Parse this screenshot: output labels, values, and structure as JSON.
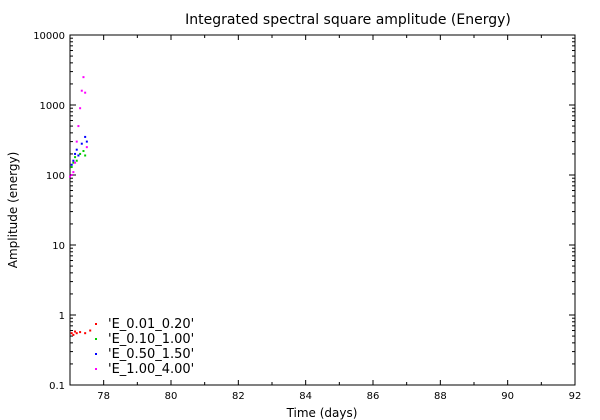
{
  "chart_data": {
    "type": "scatter",
    "title": "Integrated spectral square amplitude (Energy)",
    "xlabel": "Time (days)",
    "ylabel": "Amplitude (energy)",
    "xlim": [
      77,
      92
    ],
    "ylim": [
      0.1,
      10000
    ],
    "yscale": "log",
    "x_ticks": [
      "78",
      "80",
      "82",
      "84",
      "86",
      "88",
      "90",
      "92"
    ],
    "y_ticks": [
      "0.1",
      "1",
      "10",
      "100",
      "1000",
      "10000"
    ],
    "grid": false,
    "legend_position": "bottom-left",
    "series": [
      {
        "name": "'E_0.01_0.20'",
        "color": "#ff0000",
        "points": [
          [
            77.05,
            0.55
          ],
          [
            77.1,
            0.52
          ],
          [
            77.15,
            0.58
          ],
          [
            77.2,
            0.55
          ],
          [
            77.3,
            0.57
          ],
          [
            77.45,
            0.55
          ],
          [
            77.6,
            0.6
          ]
        ]
      },
      {
        "name": "'E_0.10_1.00'",
        "color": "#00cc00",
        "points": [
          [
            77.05,
            130
          ],
          [
            77.1,
            150
          ],
          [
            77.15,
            180
          ],
          [
            77.2,
            160
          ],
          [
            77.3,
            200
          ],
          [
            77.4,
            220
          ],
          [
            77.45,
            190
          ]
        ]
      },
      {
        "name": "'E_0.50_1.50'",
        "color": "#0000ff",
        "points": [
          [
            77.05,
            140
          ],
          [
            77.1,
            160
          ],
          [
            77.15,
            200
          ],
          [
            77.2,
            230
          ],
          [
            77.25,
            190
          ],
          [
            77.35,
            280
          ],
          [
            77.45,
            350
          ],
          [
            77.5,
            300
          ]
        ]
      },
      {
        "name": "'E_1.00_4.00'",
        "color": "#ff00ff",
        "points": [
          [
            77.0,
            95
          ],
          [
            77.05,
            100
          ],
          [
            77.1,
            110
          ],
          [
            77.15,
            150
          ],
          [
            77.2,
            300
          ],
          [
            77.25,
            500
          ],
          [
            77.3,
            900
          ],
          [
            77.35,
            1600
          ],
          [
            77.4,
            2500
          ],
          [
            77.45,
            1500
          ],
          [
            77.5,
            250
          ]
        ]
      }
    ]
  }
}
